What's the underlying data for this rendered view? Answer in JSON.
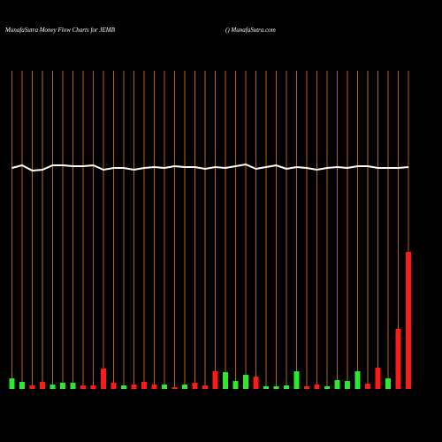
{
  "chart_data": {
    "type": "bar-line",
    "title": "MunafaSutra  Money Flow  Charts for JEMB",
    "subtitle": "() MunafaSutra.com",
    "categories": [
      null,
      null,
      null,
      null,
      null,
      null,
      null,
      null,
      null,
      null,
      null,
      null,
      null,
      null,
      null,
      null,
      null,
      null,
      null,
      null,
      null,
      null,
      null,
      null,
      null,
      null,
      null,
      null,
      null,
      null,
      null,
      null,
      null,
      null,
      null,
      null,
      null,
      null,
      null,
      null
    ],
    "values": [
      12,
      8,
      4,
      8,
      5,
      7,
      7,
      4,
      4,
      23,
      7,
      4,
      5,
      8,
      5,
      5,
      2,
      5,
      7,
      4,
      20,
      19,
      9,
      16,
      14,
      3,
      3,
      4,
      20,
      3,
      5,
      3,
      10,
      9,
      20,
      6,
      24,
      12,
      68,
      155
    ],
    "bar_colors": [
      "#2ee82e",
      "#2ee82e",
      "#ff1a1a",
      "#ff1a1a",
      "#2ee82e",
      "#2ee82e",
      "#2ee82e",
      "#ff1a1a",
      "#ff1a1a",
      "#ff1a1a",
      "#ff1a1a",
      "#2ee82e",
      "#ff1a1a",
      "#ff1a1a",
      "#ff1a1a",
      "#2ee82e",
      "#ff1a1a",
      "#2ee82e",
      "#ff1a1a",
      "#ff1a1a",
      "#ff1a1a",
      "#2ee82e",
      "#2ee82e",
      "#2ee82e",
      "#ff1a1a",
      "#2ee82e",
      "#2ee82e",
      "#2ee82e",
      "#2ee82e",
      "#ff1a1a",
      "#ff1a1a",
      "#2ee82e",
      "#2ee82e",
      "#2ee82e",
      "#2ee82e",
      "#ff1a1a",
      "#ff1a1a",
      "#2ee82e",
      "#ff1a1a",
      "#ff1a1a"
    ],
    "line_values": [
      250,
      253,
      247,
      248,
      253,
      253,
      252,
      252,
      253,
      248,
      250,
      250,
      248,
      250,
      251,
      250,
      252,
      251,
      251,
      249,
      251,
      250,
      252,
      254,
      249,
      251,
      253,
      249,
      251,
      250,
      248,
      250,
      251,
      250,
      252,
      252,
      250,
      250,
      250,
      251
    ],
    "line_color": "#ffffff",
    "gridline_color": "#b8650f",
    "ylim": [
      0,
      360
    ]
  }
}
